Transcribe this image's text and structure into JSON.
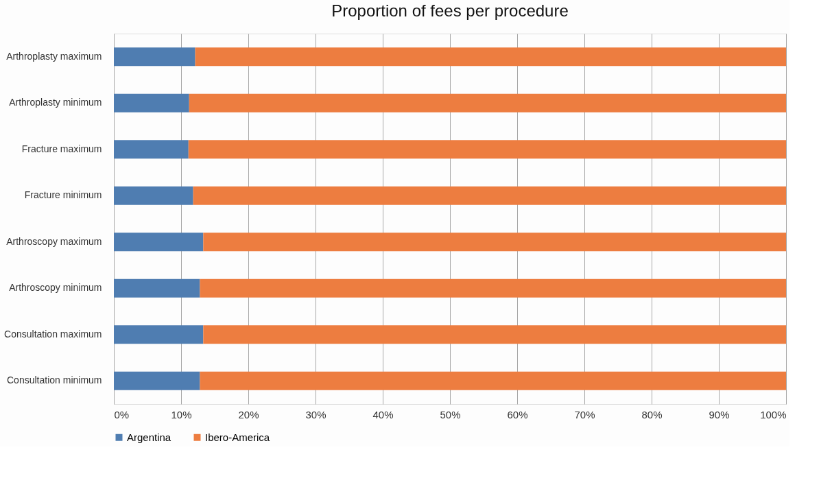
{
  "chart_data": {
    "type": "bar",
    "orientation": "horizontal",
    "stacked": true,
    "title": "Proportion of fees per procedure",
    "categories": [
      "Arthroplasty maximum",
      "Arthroplasty minimum",
      "Fracture maximum",
      "Fracture minimum",
      "Arthroscopy maximum",
      "Arthroscopy minimum",
      "Consultation maximum",
      "Consultation minimum"
    ],
    "series": [
      {
        "name": "Argentina",
        "color": "#4f7db1",
        "values": [
          12.1,
          11.2,
          11.1,
          11.8,
          13.3,
          12.8,
          13.3,
          12.8
        ]
      },
      {
        "name": "Ibero-America",
        "color": "#ed7d40",
        "values": [
          87.9,
          88.8,
          88.9,
          88.2,
          86.7,
          87.2,
          86.7,
          87.2
        ]
      }
    ],
    "xlim": [
      0,
      100
    ],
    "xticks": [
      {
        "value": 0,
        "label": "0%"
      },
      {
        "value": 10,
        "label": "10%"
      },
      {
        "value": 20,
        "label": "20%"
      },
      {
        "value": 30,
        "label": "30%"
      },
      {
        "value": 40,
        "label": "40%"
      },
      {
        "value": 50,
        "label": "50%"
      },
      {
        "value": 60,
        "label": "60%"
      },
      {
        "value": 70,
        "label": "70%"
      },
      {
        "value": 80,
        "label": "80%"
      },
      {
        "value": 90,
        "label": "90%"
      },
      {
        "value": 100,
        "label": "100%"
      }
    ],
    "grid": "x",
    "legend": "bottom"
  }
}
